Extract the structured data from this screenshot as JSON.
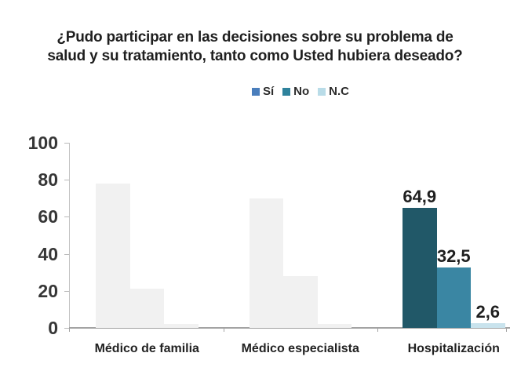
{
  "title_lines": [
    "¿Pudo participar en las decisiones sobre su problema de",
    "salud y su tratamiento, tanto como Usted hubiera deseado?"
  ],
  "legend": [
    {
      "label": "Sí",
      "color": "#4a7ebc"
    },
    {
      "label": "No",
      "color": "#2e829c"
    },
    {
      "label": "N.C",
      "color": "#b9dce8"
    }
  ],
  "chart_data": {
    "type": "bar",
    "title": "¿Pudo participar en las decisiones sobre su problema de salud y su tratamiento, tanto como Usted hubiera deseado?",
    "categories": [
      "Médico de familia",
      "Médico especialista",
      "Hospitalización"
    ],
    "series": [
      {
        "name": "Sí",
        "values": [
          78,
          70,
          64.9
        ]
      },
      {
        "name": "No",
        "values": [
          21,
          28,
          32.5
        ]
      },
      {
        "name": "N.C",
        "values": [
          2,
          2,
          2.6
        ]
      }
    ],
    "data_labels": [
      null,
      null,
      [
        "64,9",
        "32,5",
        "2,6"
      ]
    ],
    "ylim": [
      0,
      100
    ],
    "yticks": [
      0,
      20,
      40,
      60,
      80,
      100
    ],
    "legend_position": "top",
    "grid": false,
    "highlighted_category_index": 2,
    "colors": {
      "muted_bar": "#f1f1f1",
      "highlight_bars": [
        "#215868",
        "#3a86a3",
        "#c9e3ed"
      ],
      "axis_line": "#a3a3a3",
      "text": "#1f1f1f"
    }
  }
}
